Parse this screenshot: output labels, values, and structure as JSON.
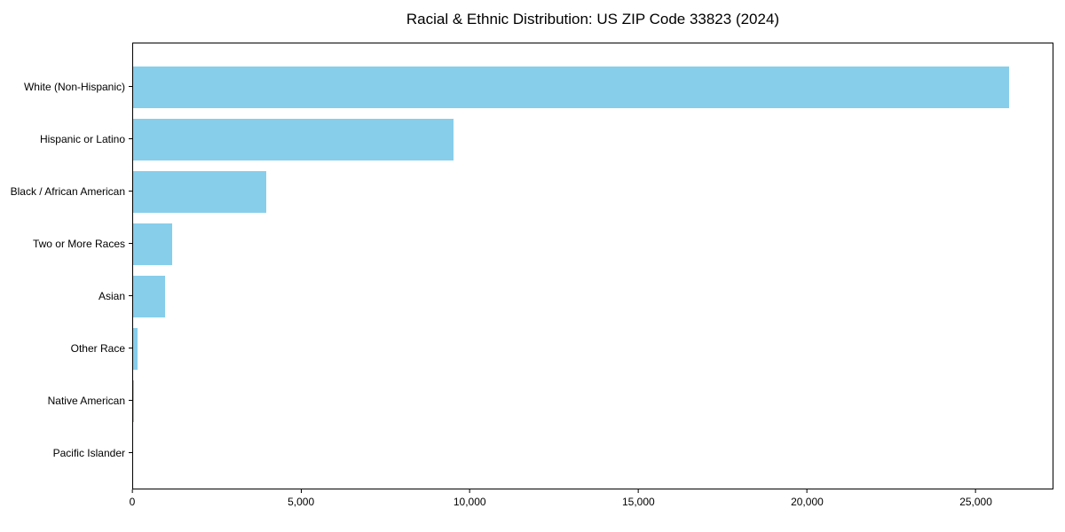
{
  "chart_data": {
    "type": "bar",
    "orientation": "horizontal",
    "title": "Racial & Ethnic Distribution: US ZIP Code 33823 (2024)",
    "categories": [
      "White (Non-Hispanic)",
      "Hispanic or Latino",
      "Black / African American",
      "Two or More Races",
      "Asian",
      "Other Race",
      "Native American",
      "Pacific Islander"
    ],
    "values": [
      26000,
      9500,
      3950,
      1150,
      950,
      140,
      30,
      0
    ],
    "xlabel": "",
    "ylabel": "",
    "xlim": [
      0,
      27300
    ],
    "xticks": {
      "values": [
        0,
        5000,
        10000,
        15000,
        20000,
        25000
      ],
      "labels": [
        "0",
        "5,000",
        "10,000",
        "15,000",
        "20,000",
        "25,000"
      ]
    },
    "bar_color": "#87CEEB",
    "axis_color": "#000000",
    "background_color": "#ffffff",
    "grid": false,
    "legend": null,
    "category_order": "largest value at top"
  }
}
